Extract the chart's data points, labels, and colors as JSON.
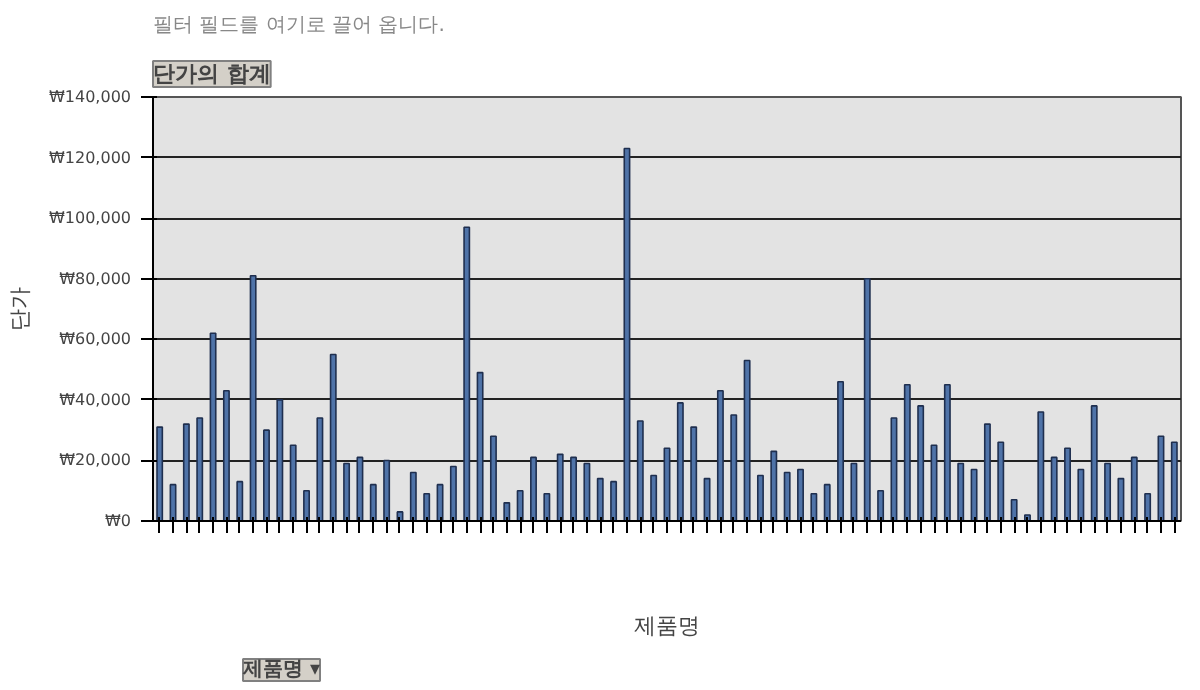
{
  "chart_data": {
    "type": "bar",
    "title": "단가의 합계",
    "xlabel": "제품명",
    "ylabel": "단가",
    "annotations": [
      "필터 필드를 여기로 끌어 옵니다.",
      "제품명 ▾"
    ],
    "categories": [
      null,
      null,
      null,
      null,
      null,
      null,
      null,
      null,
      null,
      null,
      null,
      null,
      null,
      null,
      null,
      null,
      null,
      null,
      null,
      null,
      null,
      null,
      null,
      null,
      null,
      null,
      null,
      null,
      null,
      null,
      null,
      null,
      null,
      null,
      null,
      null,
      null,
      null,
      null,
      null,
      null,
      null,
      null,
      null,
      null,
      null,
      null,
      null,
      null,
      null,
      null,
      null,
      null,
      null,
      null,
      null,
      null,
      null,
      null,
      null,
      null,
      null,
      null,
      null,
      null,
      null,
      null,
      null,
      null,
      null,
      null,
      null,
      null,
      null,
      null,
      null,
      null
    ],
    "values": [
      31000,
      12000,
      32000,
      34000,
      62000,
      43000,
      13000,
      81000,
      30000,
      40000,
      25000,
      10000,
      34000,
      55000,
      19000,
      21000,
      12000,
      20000,
      3000,
      16000,
      9000,
      12000,
      18000,
      97000,
      49000,
      28000,
      6000,
      10000,
      21000,
      9000,
      22000,
      21000,
      19000,
      14000,
      13000,
      123000,
      33000,
      15000,
      24000,
      39000,
      31000,
      14000,
      43000,
      35000,
      53000,
      15000,
      23000,
      16000,
      17000,
      9000,
      12000,
      46000,
      19000,
      80000,
      10000,
      34000,
      45000,
      38000,
      25000,
      45000,
      19000,
      17000,
      32000,
      26000,
      7000,
      2000,
      36000,
      21000,
      24000,
      17000,
      38000,
      19000,
      14000,
      21000,
      9000,
      28000,
      26000
    ],
    "color": "#4f73a8",
    "ylim": [
      0,
      140000
    ],
    "yticks": [
      {
        "value": 0,
        "label": "₩0"
      },
      {
        "value": 20000,
        "label": "₩20,000"
      },
      {
        "value": 40000,
        "label": "₩40,000"
      },
      {
        "value": 60000,
        "label": "₩60,000"
      },
      {
        "value": 80000,
        "label": "₩80,000"
      },
      {
        "value": 100000,
        "label": "₩100,000"
      },
      {
        "value": 120000,
        "label": "₩120,000"
      },
      {
        "value": 140000,
        "label": "₩140,000"
      }
    ],
    "grid": "y"
  }
}
